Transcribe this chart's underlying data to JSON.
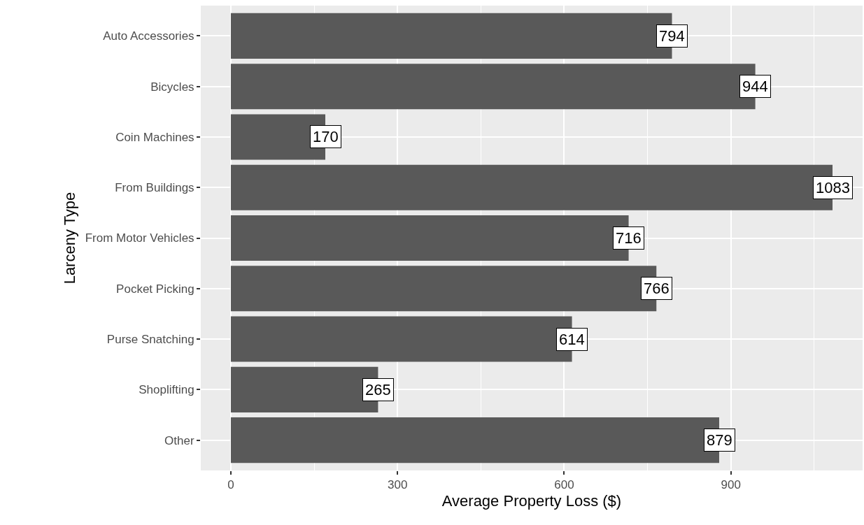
{
  "chart_data": {
    "type": "bar",
    "orientation": "horizontal",
    "xlabel": "Average Property Loss ($)",
    "ylabel": "Larceny Type",
    "categories": [
      "Auto Accessories",
      "Bicycles",
      "Coin Machines",
      "From Buildings",
      "From Motor Vehicles",
      "Pocket Picking",
      "Purse Snatching",
      "Shoplifting",
      "Other"
    ],
    "values": [
      794,
      944,
      170,
      1083,
      716,
      766,
      614,
      265,
      879
    ],
    "color": "#595959",
    "data_labels": true,
    "xlim": [
      -54.15,
      1137.15
    ],
    "xticks": [
      0,
      {
        "value": 150,
        "label": null
      },
      300,
      {
        "value": 450,
        "label": null
      },
      600,
      {
        "value": 750,
        "label": null
      },
      900,
      {
        "value": 1050,
        "label": null
      }
    ],
    "grid": true,
    "legend": false
  }
}
